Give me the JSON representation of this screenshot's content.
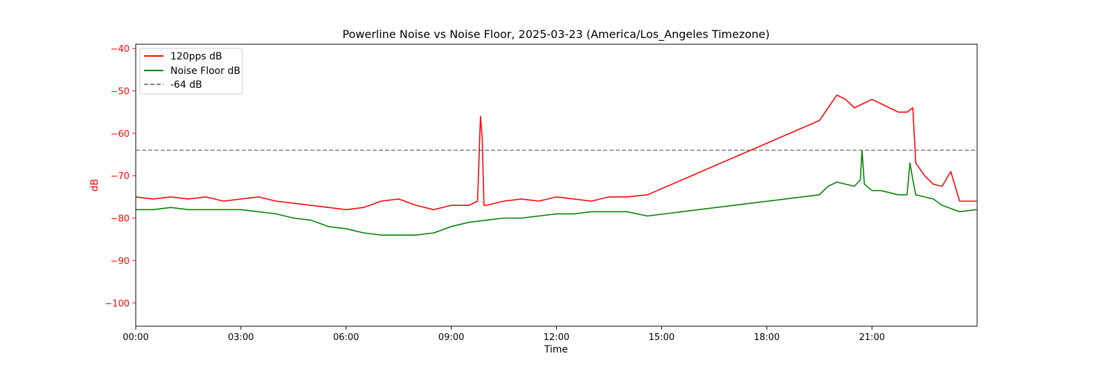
{
  "chart_data": {
    "type": "line",
    "title": "Powerline Noise vs Noise Floor, 2025-03-23 (America/Los_Angeles Timezone)",
    "xlabel": "Time",
    "ylabel": "dB",
    "xlim": [
      "00:00",
      "24:00"
    ],
    "ylim": [
      -105.5,
      -39
    ],
    "x_ticks": [
      "00:00",
      "03:00",
      "06:00",
      "09:00",
      "12:00",
      "15:00",
      "18:00",
      "21:00"
    ],
    "y_ticks": [
      -40,
      -50,
      -60,
      -70,
      -80,
      -90,
      -100
    ],
    "y_tick_labels": [
      "−40",
      "−50",
      "−60",
      "−70",
      "−80",
      "−90",
      "−100"
    ],
    "grid": false,
    "legend_position": "top-left",
    "reference_line": {
      "name": "-64 dB",
      "y": -64,
      "color": "#808080",
      "style": "dashed"
    },
    "series": [
      {
        "name": "120pps dB",
        "color": "#ff0000",
        "x": [
          "00:00",
          "00:30",
          "01:00",
          "01:30",
          "02:00",
          "02:30",
          "03:00",
          "03:30",
          "04:00",
          "04:30",
          "05:00",
          "05:30",
          "06:00",
          "06:30",
          "07:00",
          "07:30",
          "08:00",
          "08:30",
          "09:00",
          "09:30",
          "09:45",
          "09:50",
          "09:53",
          "09:56",
          "10:00",
          "10:30",
          "11:00",
          "11:30",
          "12:00",
          "12:30",
          "13:00",
          "13:30",
          "14:00",
          "14:36",
          "19:30",
          "19:45",
          "20:00",
          "20:15",
          "20:30",
          "20:45",
          "21:00",
          "21:15",
          "21:30",
          "21:45",
          "22:00",
          "22:10",
          "22:15",
          "22:30",
          "22:45",
          "23:00",
          "23:15",
          "23:30",
          "23:59"
        ],
        "y": [
          -75,
          -75.5,
          -75,
          -75.5,
          -75,
          -76,
          -75.5,
          -75,
          -76,
          -76.5,
          -77,
          -77.5,
          -78,
          -77.5,
          -76,
          -75.5,
          -77,
          -78,
          -77,
          -77,
          -76,
          -56,
          -61,
          -77,
          -77,
          -76,
          -75.5,
          -76,
          -75,
          -75.5,
          -76,
          -75,
          -75,
          -74.5,
          -57,
          -54,
          -51,
          -52,
          -54,
          -53,
          -52,
          -53,
          -54,
          -55,
          -55,
          -54,
          -67,
          -70,
          -72,
          -72.5,
          -69,
          -76,
          -76
        ]
      },
      {
        "name": "Noise Floor dB",
        "color": "#008000",
        "x": [
          "00:00",
          "00:30",
          "01:00",
          "01:30",
          "02:00",
          "02:30",
          "03:00",
          "03:30",
          "04:00",
          "04:30",
          "05:00",
          "05:30",
          "06:00",
          "06:30",
          "07:00",
          "07:30",
          "08:00",
          "08:30",
          "09:00",
          "09:30",
          "10:00",
          "10:30",
          "11:00",
          "11:30",
          "12:00",
          "12:30",
          "13:00",
          "13:30",
          "14:00",
          "14:36",
          "19:30",
          "19:45",
          "20:00",
          "20:15",
          "20:30",
          "20:40",
          "20:43",
          "20:47",
          "21:00",
          "21:15",
          "21:30",
          "21:45",
          "22:00",
          "22:05",
          "22:10",
          "22:15",
          "22:30",
          "22:45",
          "23:00",
          "23:30",
          "23:59"
        ],
        "y": [
          -78,
          -78,
          -77.5,
          -78,
          -78,
          -78,
          -78,
          -78.5,
          -79,
          -80,
          -80.5,
          -82,
          -82.5,
          -83.5,
          -84,
          -84,
          -84,
          -83.5,
          -82,
          -81,
          -80.5,
          -80,
          -80,
          -79.5,
          -79,
          -79,
          -78.5,
          -78.5,
          -78.5,
          -79.5,
          -74.5,
          -72.5,
          -71.5,
          -72,
          -72.5,
          -71,
          -64,
          -72,
          -73.5,
          -73.5,
          -74,
          -74.5,
          -74.5,
          -67,
          -71,
          -74.5,
          -75,
          -75.5,
          -77,
          -78.5,
          -78
        ]
      }
    ]
  }
}
